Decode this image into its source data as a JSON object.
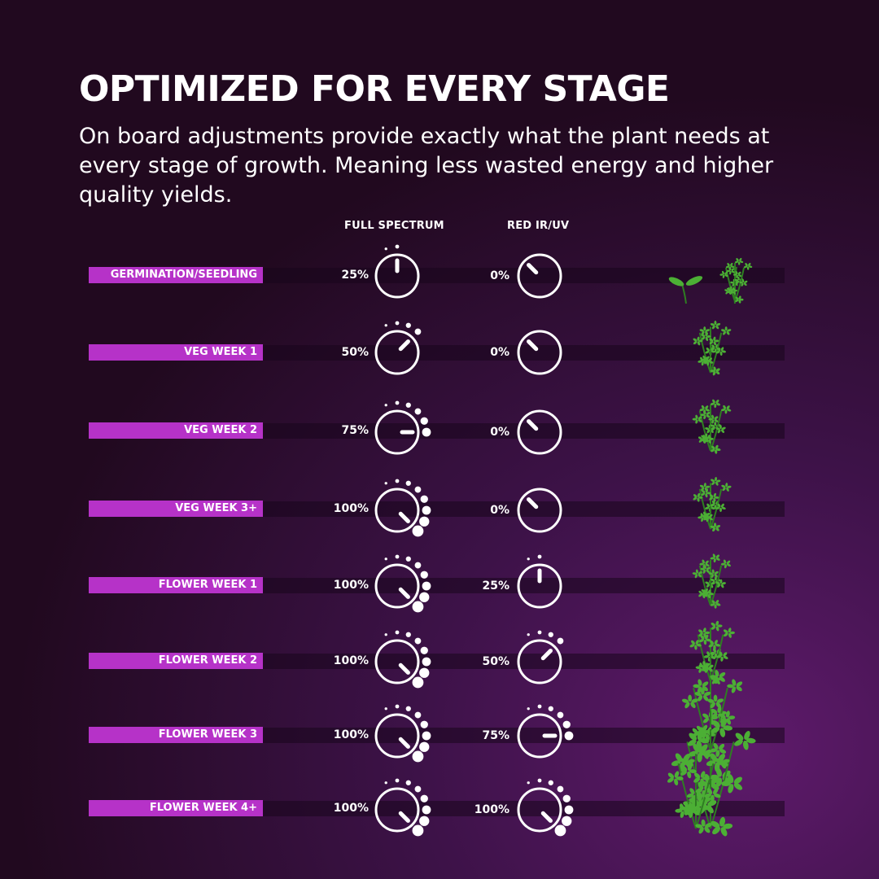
{
  "title": "OPTIMIZED FOR EVERY STAGE",
  "subtitle": "On board adjustments provide exactly what the plant needs at every stage of growth. Meaning less wasted energy and higher quality yields.",
  "columns": {
    "full_spectrum": "FULL SPECTRUM",
    "red_ir_uv": "RED IR/UV"
  },
  "colors": {
    "label_bg": "#b632c8",
    "background_dark": "#21091f",
    "background_light": "#5e1a6b",
    "plant_green": "#4caf35"
  },
  "stages": [
    {
      "label": "GERMINATION/SEEDLING",
      "full_spectrum": "25%",
      "red_ir_uv": "0%"
    },
    {
      "label": "VEG WEEK 1",
      "full_spectrum": "50%",
      "red_ir_uv": "0%"
    },
    {
      "label": "VEG WEEK 2",
      "full_spectrum": "75%",
      "red_ir_uv": "0%"
    },
    {
      "label": "VEG WEEK 3+",
      "full_spectrum": "100%",
      "red_ir_uv": "0%"
    },
    {
      "label": "FLOWER WEEK 1",
      "full_spectrum": "100%",
      "red_ir_uv": "25%"
    },
    {
      "label": "FLOWER WEEK 2",
      "full_spectrum": "100%",
      "red_ir_uv": "50%"
    },
    {
      "label": "FLOWER WEEK 3",
      "full_spectrum": "100%",
      "red_ir_uv": "75%"
    },
    {
      "label": "FLOWER WEEK 4+",
      "full_spectrum": "100%",
      "red_ir_uv": "100%"
    }
  ],
  "icons": {
    "knob": "dial-knob-icon",
    "plant": "plant-icon",
    "seedling": "seedling-icon"
  }
}
